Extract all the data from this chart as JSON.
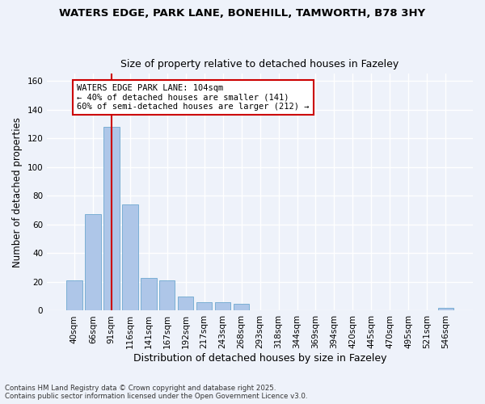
{
  "title1": "WATERS EDGE, PARK LANE, BONEHILL, TAMWORTH, B78 3HY",
  "title2": "Size of property relative to detached houses in Fazeley",
  "xlabel": "Distribution of detached houses by size in Fazeley",
  "ylabel": "Number of detached properties",
  "categories": [
    "40sqm",
    "66sqm",
    "91sqm",
    "116sqm",
    "141sqm",
    "167sqm",
    "192sqm",
    "217sqm",
    "243sqm",
    "268sqm",
    "293sqm",
    "318sqm",
    "344sqm",
    "369sqm",
    "394sqm",
    "420sqm",
    "445sqm",
    "470sqm",
    "495sqm",
    "521sqm",
    "546sqm"
  ],
  "values": [
    21,
    67,
    128,
    74,
    23,
    21,
    10,
    6,
    6,
    5,
    0,
    0,
    0,
    0,
    0,
    0,
    0,
    0,
    0,
    0,
    2
  ],
  "bar_color": "#aec6e8",
  "bar_edge_color": "#7bafd4",
  "vline_color": "#cc0000",
  "vline_x_index": 2.0,
  "annotation_label": "WATERS EDGE PARK LANE: 104sqm",
  "annotation_line1": "← 40% of detached houses are smaller (141)",
  "annotation_line2": "60% of semi-detached houses are larger (212) →",
  "annotation_box_color": "#ffffff",
  "annotation_box_edge": "#cc0000",
  "footer1": "Contains HM Land Registry data © Crown copyright and database right 2025.",
  "footer2": "Contains public sector information licensed under the Open Government Licence v3.0.",
  "background_color": "#eef2fa",
  "ylim": [
    0,
    165
  ],
  "yticks": [
    0,
    20,
    40,
    60,
    80,
    100,
    120,
    140,
    160
  ]
}
